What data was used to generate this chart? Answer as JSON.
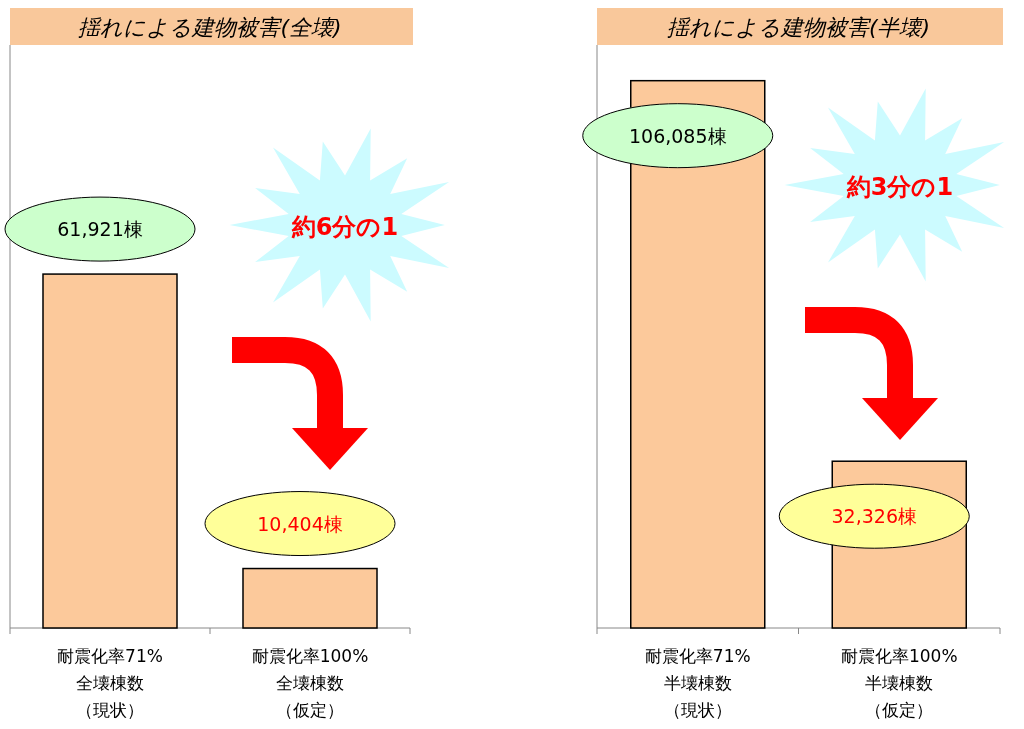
{
  "chart_data": [
    {
      "type": "bar",
      "title": "揺れによる建物被害(全壊)",
      "categories": [
        "耐震化率71%\n全壊棟数（現状）",
        "耐震化率100%\n全壊棟数（仮定）"
      ],
      "values": [
        61921,
        10404
      ],
      "value_labels": [
        "61,921棟",
        "10,404棟"
      ],
      "color": "#fcc99b",
      "ylim": [
        0,
        102000
      ],
      "annotations": [
        "約6分の1"
      ]
    },
    {
      "type": "bar",
      "title": "揺れによる建物被害(半壊)",
      "categories": [
        "耐震化率71%\n半壊棟数（現状）",
        "耐震化率100%\n半壊棟数（仮定）"
      ],
      "values": [
        106085,
        32326
      ],
      "value_labels": [
        "106,085棟",
        "32,326棟"
      ],
      "color": "#fcc99b",
      "ylim": [
        0,
        113000
      ],
      "annotations": [
        "約3分の1"
      ]
    }
  ]
}
